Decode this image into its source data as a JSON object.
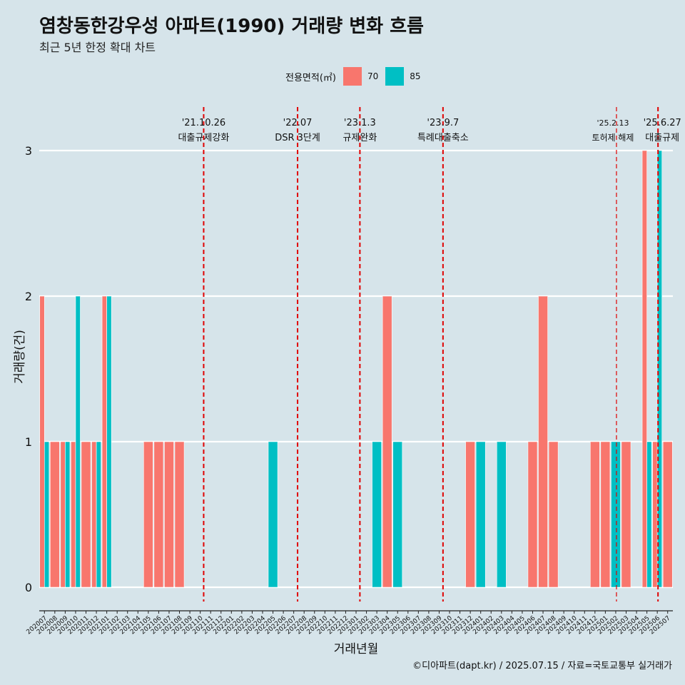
{
  "title": "염창동한강우성 아파트(1990) 거래량 변화 흐름",
  "subtitle": "최근 5년 한정 확대 차트",
  "caption": "©디아파트(dapt.kr) / 2025.07.15 / 자료=국토교통부 실거래가",
  "colors": {
    "s70": "#f8766d",
    "s85": "#00bfc4",
    "ref": "#e00000"
  },
  "legend": {
    "title": "전용면적(㎡)",
    "items": [
      {
        "label": "70",
        "color": "#f8766d"
      },
      {
        "label": "85",
        "color": "#00bfc4"
      }
    ]
  },
  "chart_data": {
    "type": "bar",
    "xlabel": "거래년월",
    "ylabel": "거래량(건)",
    "ylim": [
      0,
      3
    ],
    "yticks": [
      0,
      1,
      2,
      3
    ],
    "grid": true,
    "legend_position": "top",
    "categories": [
      "202007",
      "202008",
      "202009",
      "202010",
      "202011",
      "202012",
      "202101",
      "202102",
      "202103",
      "202104",
      "202105",
      "202106",
      "202107",
      "202108",
      "202109",
      "202110",
      "202111",
      "202112",
      "202201",
      "202202",
      "202203",
      "202204",
      "202205",
      "202206",
      "202207",
      "202208",
      "202209",
      "202210",
      "202211",
      "202212",
      "202301",
      "202302",
      "202303",
      "202304",
      "202305",
      "202306",
      "202307",
      "202308",
      "202309",
      "202310",
      "202311",
      "202312",
      "202401",
      "202402",
      "202403",
      "202404",
      "202405",
      "202406",
      "202407",
      "202408",
      "202409",
      "202410",
      "202411",
      "202412",
      "202501",
      "202502",
      "202503",
      "202504",
      "202505",
      "202506",
      "202507"
    ],
    "series": [
      {
        "name": "70",
        "values": [
          2,
          1,
          1,
          1,
          1,
          1,
          2,
          0,
          0,
          0,
          1,
          1,
          1,
          1,
          0,
          0,
          0,
          0,
          0,
          0,
          0,
          0,
          0,
          0,
          0,
          0,
          0,
          0,
          0,
          0,
          0,
          0,
          0,
          2,
          0,
          0,
          0,
          0,
          0,
          0,
          0,
          1,
          0,
          0,
          0,
          0,
          0,
          1,
          2,
          1,
          0,
          0,
          0,
          1,
          1,
          0,
          1,
          0,
          3,
          1,
          1
        ]
      },
      {
        "name": "85",
        "values": [
          1,
          0,
          1,
          2,
          0,
          1,
          2,
          0,
          0,
          0,
          0,
          0,
          0,
          0,
          0,
          0,
          0,
          0,
          0,
          0,
          0,
          0,
          1,
          0,
          0,
          0,
          0,
          0,
          0,
          0,
          0,
          0,
          1,
          0,
          1,
          0,
          0,
          0,
          0,
          0,
          0,
          0,
          1,
          0,
          1,
          0,
          0,
          0,
          0,
          0,
          0,
          0,
          0,
          0,
          0,
          1,
          0,
          0,
          1,
          3,
          0
        ]
      }
    ],
    "annotations": [
      {
        "date": "'21.10.26",
        "label": "대출규제강화",
        "x": 15.83
      },
      {
        "date": "'22.07",
        "label": "DSR 3단계",
        "x": 24.87
      },
      {
        "date": "'23.1.3",
        "label": "규제완화",
        "x": 30.87
      },
      {
        "date": "'23.9.7",
        "label": "특례대출축소",
        "x": 38.87
      },
      {
        "date": "'25.2.13",
        "label": "토허제 해제",
        "x": 55.57
      },
      {
        "date": "'25.6.27",
        "label": "대출규제",
        "x": 59.57
      }
    ]
  }
}
